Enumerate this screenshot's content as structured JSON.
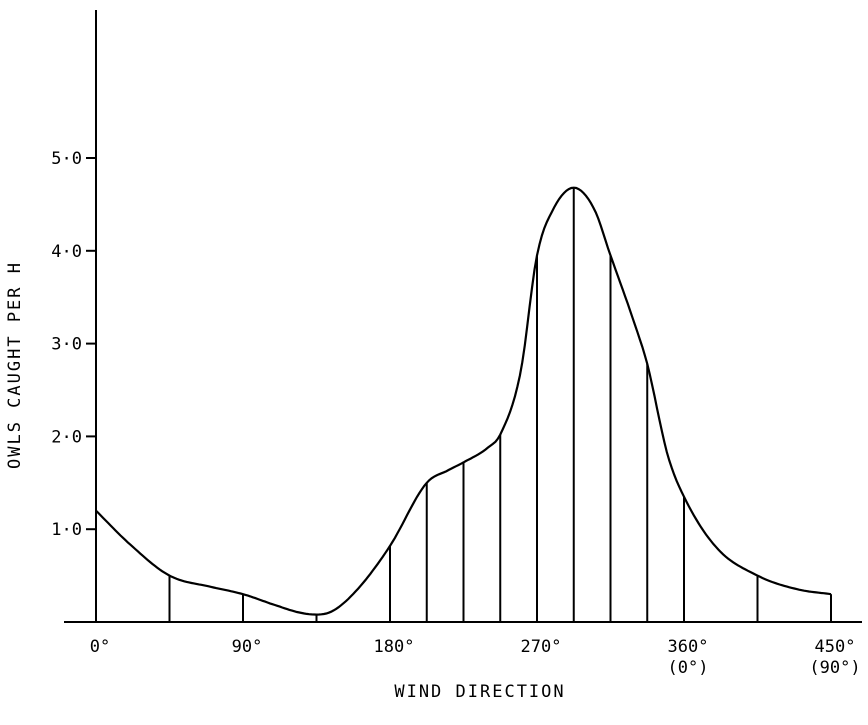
{
  "chart_data": {
    "type": "area",
    "title": "",
    "xlabel": "WIND DIRECTION",
    "ylabel": "OWLS CAUGHT PER H",
    "xlim": [
      0,
      450
    ],
    "ylim": [
      0,
      5.0
    ],
    "grid": false,
    "legend": "none",
    "x_ticks": [
      {
        "value": 0,
        "label": "0°",
        "sublabel": ""
      },
      {
        "value": 90,
        "label": "90°",
        "sublabel": ""
      },
      {
        "value": 180,
        "label": "180°",
        "sublabel": ""
      },
      {
        "value": 270,
        "label": "270°",
        "sublabel": ""
      },
      {
        "value": 360,
        "label": "360°",
        "sublabel": "(0°)"
      },
      {
        "value": 450,
        "label": "450°",
        "sublabel": "(90°)"
      }
    ],
    "y_ticks": [
      {
        "value": 1.0,
        "label": "1·0"
      },
      {
        "value": 2.0,
        "label": "2·0"
      },
      {
        "value": 3.0,
        "label": "3·0"
      },
      {
        "value": 4.0,
        "label": "4·0"
      },
      {
        "value": 5.0,
        "label": "5·0"
      }
    ],
    "drop_lines_x": [
      0,
      45,
      90,
      135,
      180,
      202.5,
      225,
      247.5,
      270,
      292.5,
      315,
      337.5,
      360,
      405,
      450
    ],
    "curve": {
      "x": [
        0,
        20,
        45,
        70,
        90,
        110,
        125,
        135,
        145,
        160,
        180,
        202.5,
        215,
        225,
        240,
        247.5,
        260,
        270,
        280,
        292.5,
        305,
        315,
        330,
        337.5,
        350,
        360,
        380,
        405,
        430,
        450
      ],
      "y": [
        1.2,
        0.85,
        0.5,
        0.38,
        0.3,
        0.18,
        0.1,
        0.08,
        0.12,
        0.35,
        0.82,
        1.5,
        1.63,
        1.72,
        1.88,
        2.02,
        2.7,
        3.95,
        4.45,
        4.68,
        4.45,
        3.95,
        3.2,
        2.78,
        1.8,
        1.35,
        0.8,
        0.5,
        0.35,
        0.3
      ]
    }
  }
}
